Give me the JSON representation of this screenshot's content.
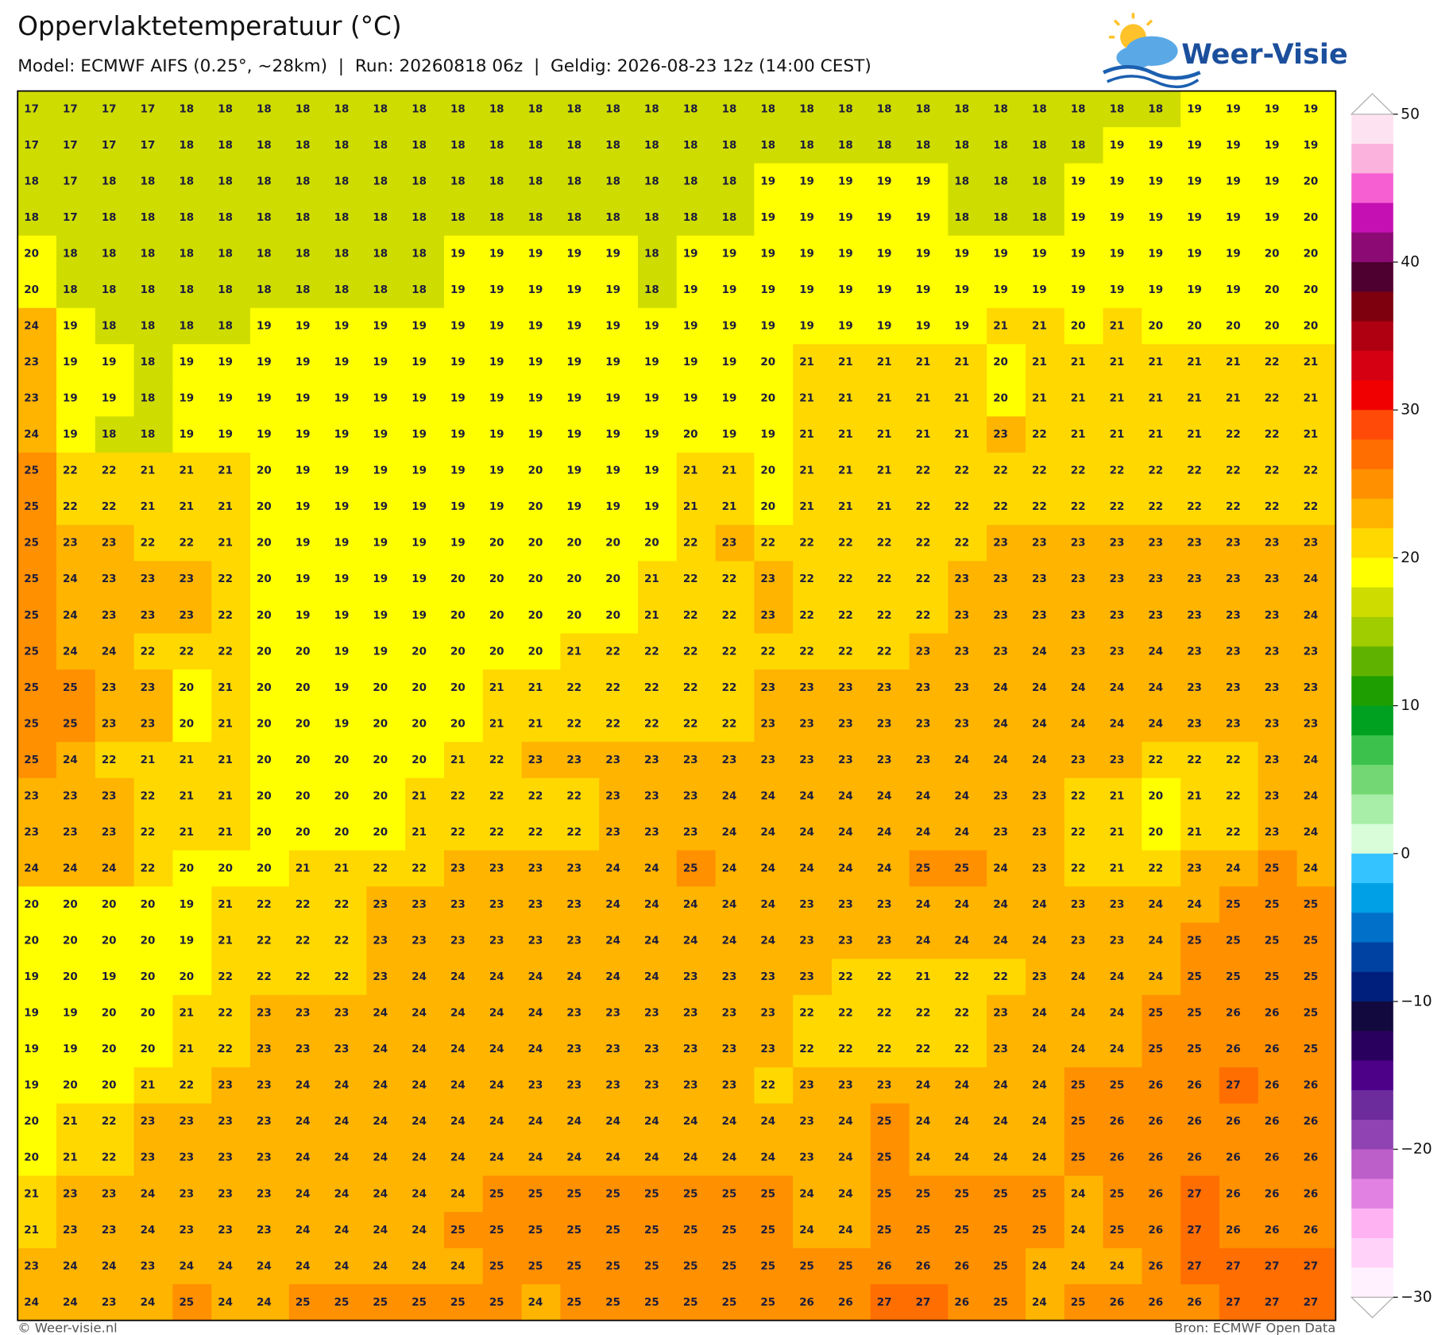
{
  "header": {
    "title": "Oppervlaktetemperatuur (°C)",
    "subtitle": "Model: ECMWF AIFS (0.25°, ~28km)  |  Run: 20260818 06z  |  Geldig: 2026-08-23 12z (14:00 CEST)"
  },
  "logo": "Weer-Visie",
  "grid": {
    "rows": [
      [
        17,
        17,
        17,
        17,
        18,
        18,
        18,
        18,
        18,
        18,
        18,
        18,
        18,
        18,
        18,
        18,
        18,
        18,
        18,
        18,
        18,
        18,
        18,
        18,
        18,
        18,
        18,
        18,
        18,
        18,
        19,
        19,
        19,
        19
      ],
      [
        17,
        17,
        17,
        17,
        18,
        18,
        18,
        18,
        18,
        18,
        18,
        18,
        18,
        18,
        18,
        18,
        18,
        18,
        18,
        18,
        18,
        18,
        18,
        18,
        18,
        18,
        18,
        18,
        19,
        19,
        19,
        19,
        19,
        19
      ],
      [
        18,
        17,
        18,
        18,
        18,
        18,
        18,
        18,
        18,
        18,
        18,
        18,
        18,
        18,
        18,
        18,
        18,
        18,
        18,
        19,
        19,
        19,
        19,
        19,
        18,
        18,
        18,
        19,
        19,
        19,
        19,
        19,
        19,
        20
      ],
      [
        18,
        17,
        18,
        18,
        18,
        18,
        18,
        18,
        18,
        18,
        18,
        18,
        18,
        18,
        18,
        18,
        18,
        18,
        18,
        19,
        19,
        19,
        19,
        19,
        18,
        18,
        18,
        19,
        19,
        19,
        19,
        19,
        19,
        20
      ],
      [
        20,
        18,
        18,
        18,
        18,
        18,
        18,
        18,
        18,
        18,
        18,
        19,
        19,
        19,
        19,
        19,
        18,
        19,
        19,
        19,
        19,
        19,
        19,
        19,
        19,
        19,
        19,
        19,
        19,
        19,
        19,
        19,
        20,
        20
      ],
      [
        20,
        18,
        18,
        18,
        18,
        18,
        18,
        18,
        18,
        18,
        18,
        19,
        19,
        19,
        19,
        19,
        18,
        19,
        19,
        19,
        19,
        19,
        19,
        19,
        19,
        19,
        19,
        19,
        19,
        19,
        19,
        19,
        20,
        20
      ],
      [
        24,
        19,
        18,
        18,
        18,
        18,
        19,
        19,
        19,
        19,
        19,
        19,
        19,
        19,
        19,
        19,
        19,
        19,
        19,
        19,
        19,
        19,
        19,
        19,
        19,
        21,
        21,
        20,
        21,
        20,
        20,
        20,
        20,
        20
      ],
      [
        23,
        19,
        19,
        18,
        19,
        19,
        19,
        19,
        19,
        19,
        19,
        19,
        19,
        19,
        19,
        19,
        19,
        19,
        19,
        20,
        21,
        21,
        21,
        21,
        21,
        20,
        21,
        21,
        21,
        21,
        21,
        21,
        22,
        21
      ],
      [
        23,
        19,
        19,
        18,
        19,
        19,
        19,
        19,
        19,
        19,
        19,
        19,
        19,
        19,
        19,
        19,
        19,
        19,
        19,
        20,
        21,
        21,
        21,
        21,
        21,
        20,
        21,
        21,
        21,
        21,
        21,
        21,
        22,
        21
      ],
      [
        24,
        19,
        18,
        18,
        19,
        19,
        19,
        19,
        19,
        19,
        19,
        19,
        19,
        19,
        19,
        19,
        19,
        20,
        19,
        19,
        21,
        21,
        21,
        21,
        21,
        23,
        22,
        21,
        21,
        21,
        21,
        22,
        22,
        21
      ],
      [
        25,
        22,
        22,
        21,
        21,
        21,
        20,
        19,
        19,
        19,
        19,
        19,
        19,
        20,
        19,
        19,
        19,
        21,
        21,
        20,
        21,
        21,
        21,
        22,
        22,
        22,
        22,
        22,
        22,
        22,
        22,
        22,
        22,
        22
      ],
      [
        25,
        22,
        22,
        21,
        21,
        21,
        20,
        19,
        19,
        19,
        19,
        19,
        19,
        20,
        19,
        19,
        19,
        21,
        21,
        20,
        21,
        21,
        21,
        22,
        22,
        22,
        22,
        22,
        22,
        22,
        22,
        22,
        22,
        22
      ],
      [
        25,
        23,
        23,
        22,
        22,
        21,
        20,
        19,
        19,
        19,
        19,
        19,
        20,
        20,
        20,
        20,
        20,
        22,
        23,
        22,
        22,
        22,
        22,
        22,
        22,
        23,
        23,
        23,
        23,
        23,
        23,
        23,
        23,
        23
      ],
      [
        25,
        24,
        23,
        23,
        23,
        22,
        20,
        19,
        19,
        19,
        19,
        20,
        20,
        20,
        20,
        20,
        21,
        22,
        22,
        23,
        22,
        22,
        22,
        22,
        23,
        23,
        23,
        23,
        23,
        23,
        23,
        23,
        23,
        24
      ],
      [
        25,
        24,
        23,
        23,
        23,
        22,
        20,
        19,
        19,
        19,
        19,
        20,
        20,
        20,
        20,
        20,
        21,
        22,
        22,
        23,
        22,
        22,
        22,
        22,
        23,
        23,
        23,
        23,
        23,
        23,
        23,
        23,
        23,
        24
      ],
      [
        25,
        24,
        24,
        22,
        22,
        22,
        20,
        20,
        19,
        19,
        20,
        20,
        20,
        20,
        21,
        22,
        22,
        22,
        22,
        22,
        22,
        22,
        22,
        23,
        23,
        23,
        24,
        23,
        23,
        24,
        23,
        23,
        23,
        23
      ],
      [
        25,
        25,
        23,
        23,
        20,
        21,
        20,
        20,
        19,
        20,
        20,
        20,
        21,
        21,
        22,
        22,
        22,
        22,
        22,
        23,
        23,
        23,
        23,
        23,
        23,
        24,
        24,
        24,
        24,
        24,
        23,
        23,
        23,
        23
      ],
      [
        25,
        25,
        23,
        23,
        20,
        21,
        20,
        20,
        19,
        20,
        20,
        20,
        21,
        21,
        22,
        22,
        22,
        22,
        22,
        23,
        23,
        23,
        23,
        23,
        23,
        24,
        24,
        24,
        24,
        24,
        23,
        23,
        23,
        23
      ],
      [
        25,
        24,
        22,
        21,
        21,
        21,
        20,
        20,
        20,
        20,
        20,
        21,
        22,
        23,
        23,
        23,
        23,
        23,
        23,
        23,
        23,
        23,
        23,
        23,
        24,
        24,
        24,
        23,
        23,
        22,
        22,
        22,
        23,
        24
      ],
      [
        23,
        23,
        23,
        22,
        21,
        21,
        20,
        20,
        20,
        20,
        21,
        22,
        22,
        22,
        22,
        23,
        23,
        23,
        24,
        24,
        24,
        24,
        24,
        24,
        24,
        23,
        23,
        22,
        21,
        20,
        21,
        22,
        23,
        24
      ],
      [
        23,
        23,
        23,
        22,
        21,
        21,
        20,
        20,
        20,
        20,
        21,
        22,
        22,
        22,
        22,
        23,
        23,
        23,
        24,
        24,
        24,
        24,
        24,
        24,
        24,
        23,
        23,
        22,
        21,
        20,
        21,
        22,
        23,
        24
      ],
      [
        24,
        24,
        24,
        22,
        20,
        20,
        20,
        21,
        21,
        22,
        22,
        23,
        23,
        23,
        23,
        24,
        24,
        25,
        24,
        24,
        24,
        24,
        24,
        25,
        25,
        24,
        23,
        22,
        21,
        22,
        23,
        24,
        25,
        24
      ],
      [
        20,
        20,
        20,
        20,
        19,
        21,
        22,
        22,
        22,
        23,
        23,
        23,
        23,
        23,
        23,
        24,
        24,
        24,
        24,
        24,
        23,
        23,
        23,
        24,
        24,
        24,
        24,
        23,
        23,
        24,
        24,
        25,
        25,
        25
      ],
      [
        20,
        20,
        20,
        20,
        19,
        21,
        22,
        22,
        22,
        23,
        23,
        23,
        23,
        23,
        23,
        24,
        24,
        24,
        24,
        24,
        23,
        23,
        23,
        24,
        24,
        24,
        24,
        23,
        23,
        24,
        25,
        25,
        25,
        25
      ],
      [
        19,
        20,
        19,
        20,
        20,
        22,
        22,
        22,
        22,
        23,
        24,
        24,
        24,
        24,
        24,
        24,
        24,
        23,
        23,
        23,
        23,
        22,
        22,
        21,
        22,
        22,
        23,
        24,
        24,
        24,
        25,
        25,
        25,
        25
      ],
      [
        19,
        19,
        20,
        20,
        21,
        22,
        23,
        23,
        23,
        24,
        24,
        24,
        24,
        24,
        23,
        23,
        23,
        23,
        23,
        23,
        22,
        22,
        22,
        22,
        22,
        23,
        24,
        24,
        24,
        25,
        25,
        26,
        26,
        25
      ],
      [
        19,
        19,
        20,
        20,
        21,
        22,
        23,
        23,
        23,
        24,
        24,
        24,
        24,
        24,
        23,
        23,
        23,
        23,
        23,
        23,
        22,
        22,
        22,
        22,
        22,
        23,
        24,
        24,
        24,
        25,
        25,
        26,
        26,
        25
      ],
      [
        19,
        20,
        20,
        21,
        22,
        23,
        23,
        24,
        24,
        24,
        24,
        24,
        24,
        23,
        23,
        23,
        23,
        23,
        23,
        22,
        23,
        23,
        23,
        24,
        24,
        24,
        24,
        25,
        25,
        26,
        26,
        27,
        26,
        26
      ],
      [
        20,
        21,
        22,
        23,
        23,
        23,
        23,
        24,
        24,
        24,
        24,
        24,
        24,
        24,
        24,
        24,
        24,
        24,
        24,
        24,
        23,
        24,
        25,
        24,
        24,
        24,
        24,
        25,
        26,
        26,
        26,
        26,
        26,
        26
      ],
      [
        20,
        21,
        22,
        23,
        23,
        23,
        23,
        24,
        24,
        24,
        24,
        24,
        24,
        24,
        24,
        24,
        24,
        24,
        24,
        24,
        23,
        24,
        25,
        24,
        24,
        24,
        24,
        25,
        26,
        26,
        26,
        26,
        26,
        26
      ],
      [
        21,
        23,
        23,
        24,
        23,
        23,
        23,
        24,
        24,
        24,
        24,
        24,
        25,
        25,
        25,
        25,
        25,
        25,
        25,
        25,
        24,
        24,
        25,
        25,
        25,
        25,
        25,
        24,
        25,
        26,
        27,
        26,
        26,
        26
      ],
      [
        21,
        23,
        23,
        24,
        23,
        23,
        23,
        24,
        24,
        24,
        24,
        25,
        25,
        25,
        25,
        25,
        25,
        25,
        25,
        25,
        24,
        24,
        25,
        25,
        25,
        25,
        25,
        24,
        25,
        26,
        27,
        26,
        26,
        26
      ],
      [
        23,
        24,
        24,
        23,
        24,
        24,
        24,
        24,
        24,
        24,
        24,
        24,
        25,
        25,
        25,
        25,
        25,
        25,
        25,
        25,
        25,
        25,
        26,
        26,
        26,
        25,
        24,
        24,
        24,
        26,
        27,
        27,
        27,
        27
      ],
      [
        24,
        24,
        23,
        24,
        25,
        24,
        24,
        25,
        25,
        25,
        25,
        25,
        25,
        24,
        25,
        25,
        25,
        25,
        25,
        25,
        26,
        26,
        27,
        27,
        26,
        25,
        24,
        25,
        26,
        26,
        26,
        27,
        27,
        27
      ]
    ]
  },
  "colorbar": {
    "ticks": [
      50,
      40,
      30,
      20,
      10,
      0,
      {
        "value": -10,
        "label": "−10"
      },
      {
        "value": -20,
        "label": "−20"
      },
      {
        "value": -30,
        "label": "−30"
      }
    ]
  },
  "footer": {
    "left": "© Weer-visie.nl",
    "right": "Bron: ECMWF Open Data"
  }
}
